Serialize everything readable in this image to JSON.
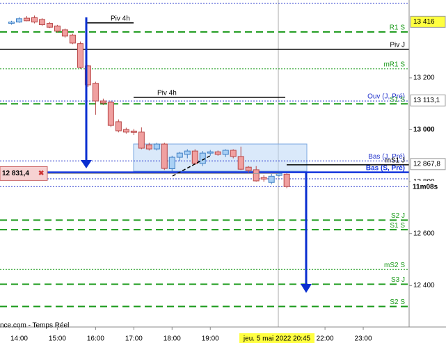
{
  "chart_data": {
    "type": "candlestick",
    "x": [
      13.8,
      14.0,
      14.2,
      14.4,
      14.6,
      14.8,
      15.0,
      15.2,
      15.4,
      15.6,
      15.8,
      16.0,
      16.2,
      16.4,
      16.6,
      16.8,
      17.0,
      17.2,
      17.4,
      17.6,
      17.8,
      18.0,
      18.2,
      18.4,
      18.6,
      18.8,
      19.0,
      19.2,
      19.4,
      19.6,
      19.8,
      20.0,
      20.2,
      20.4,
      20.6,
      20.8,
      21.0
    ],
    "open": [
      13410,
      13415,
      13430,
      13432,
      13425,
      13410,
      13400,
      13385,
      13365,
      13332,
      13246,
      13179,
      13111,
      13106,
      13031,
      13001,
      12995,
      12991,
      12942,
      12926,
      12945,
      12850,
      12894,
      12905,
      12918,
      12870,
      12910,
      12915,
      12905,
      12921,
      12897,
      12856,
      12846,
      12816,
      12797,
      12824,
      12829
    ],
    "high": [
      13420,
      13434,
      13438,
      13440,
      13430,
      13415,
      13404,
      13390,
      13370,
      13340,
      13250,
      13185,
      13120,
      13112,
      13040,
      13008,
      13003,
      13009,
      12950,
      12950,
      12950,
      12900,
      12915,
      12925,
      12925,
      12918,
      12922,
      12920,
      12925,
      12925,
      12935,
      12860,
      12860,
      12825,
      12830,
      12835,
      12832
    ],
    "low": [
      13405,
      13412,
      13418,
      13410,
      13400,
      13392,
      13375,
      13355,
      13330,
      13235,
      13165,
      13058,
      13095,
      13010,
      12990,
      12985,
      12980,
      12925,
      12920,
      12920,
      12845,
      12840,
      12880,
      12890,
      12865,
      12860,
      12900,
      12900,
      12895,
      12890,
      12845,
      12835,
      12800,
      12800,
      12790,
      12820,
      12775
    ],
    "close": [
      13415,
      13428,
      13420,
      13415,
      13405,
      13395,
      13380,
      13361,
      13334,
      13240,
      13173,
      13111,
      13103,
      13017,
      12996,
      12991,
      12990,
      12929,
      12926,
      12945,
      12851,
      12894,
      12910,
      12918,
      12870,
      12910,
      12915,
      12905,
      12921,
      12897,
      12848,
      12843,
      12803,
      12810,
      12821,
      12832,
      12781
    ],
    "up_color": "#a9d0f5",
    "down_color": "#f0a0a0",
    "xlim": [
      13.5,
      24.2
    ],
    "xticks": [
      {
        "value": 14,
        "label": "14:00"
      },
      {
        "value": 15,
        "label": "15:00"
      },
      {
        "value": 16,
        "label": "16:00"
      },
      {
        "value": 17,
        "label": "17:00"
      },
      {
        "value": 18,
        "label": "18:00"
      },
      {
        "value": 19,
        "label": "19:00"
      },
      {
        "value": 22,
        "label": "22:00"
      },
      {
        "value": 23,
        "label": "23:00"
      }
    ],
    "ylim": [
      12240,
      13500
    ],
    "yticks": [
      {
        "value": 13200,
        "label": "13 200"
      },
      {
        "value": 13000,
        "label": "13 000"
      },
      {
        "value": 12800,
        "label": "12 800"
      },
      {
        "value": 12600,
        "label": "12 600"
      },
      {
        "value": 12400,
        "label": "12 400"
      }
    ],
    "levels": [
      {
        "label": "Piv 4h",
        "value": 13412,
        "color": "#000000",
        "style": "solid"
      },
      {
        "label": "R1 S",
        "value": 13377,
        "color": "#1a9a1a",
        "style": "dashed"
      },
      {
        "label": "Piv J",
        "value": 13310,
        "color": "#000000",
        "style": "solid"
      },
      {
        "label": "mR1 S",
        "value": 13235,
        "color": "#1a9a1a",
        "style": "dotted"
      },
      {
        "label": "Piv 4h",
        "value": 13125,
        "color": "#000000",
        "style": "solid"
      },
      {
        "label": "Ouv (J, Pré)",
        "value": 13111,
        "color": "#2233cc",
        "style": "dotted"
      },
      {
        "label": "S1 S",
        "value": 13100,
        "color": "#1a9a1a",
        "style": "dashed"
      },
      {
        "label": "Bas (J, Pré)",
        "value": 12880,
        "color": "#2233cc",
        "style": "dotted"
      },
      {
        "label": "mS1 J",
        "value": 12865,
        "color": "#000000",
        "style": "solid"
      },
      {
        "label": "Bas (S, Pré)",
        "value": 12836,
        "color": "#1133dd",
        "style": "thick"
      },
      {
        "label": "S2 J",
        "value": 12652,
        "color": "#1a9a1a",
        "style": "dashed"
      },
      {
        "label": "S1 S",
        "value": 12615,
        "color": "#1a9a1a",
        "style": "dashed"
      },
      {
        "label": "mS2 S",
        "value": 12462,
        "color": "#1a9a1a",
        "style": "dotted"
      },
      {
        "label": "S3 J",
        "value": 12405,
        "color": "#1a9a1a",
        "style": "dashed"
      },
      {
        "label": "S2 S",
        "value": 12319,
        "color": "#1a9a1a",
        "style": "dashed"
      },
      {
        "value": 13488,
        "color": "#2233cc",
        "style": "dotted"
      },
      {
        "value": 12811,
        "color": "#2233cc",
        "style": "dotted"
      },
      {
        "value": 12781,
        "color": "#2233cc",
        "style": "dotted"
      }
    ],
    "price_tags": [
      {
        "value": 13416,
        "label": "13 416",
        "bg": "#ffff40"
      },
      {
        "value": 13113.1,
        "label": "13 113,1",
        "bg": "#ffffff"
      },
      {
        "value": 12867.8,
        "label": "12 867,8",
        "bg": "#ffffff"
      }
    ],
    "countdown": "11m08s",
    "order": {
      "value": 12831.4,
      "label": "12 831,4"
    },
    "source": "nce.com - Temps Réel",
    "cursor_date": "jeu. 5 mai 2022 20:45"
  }
}
